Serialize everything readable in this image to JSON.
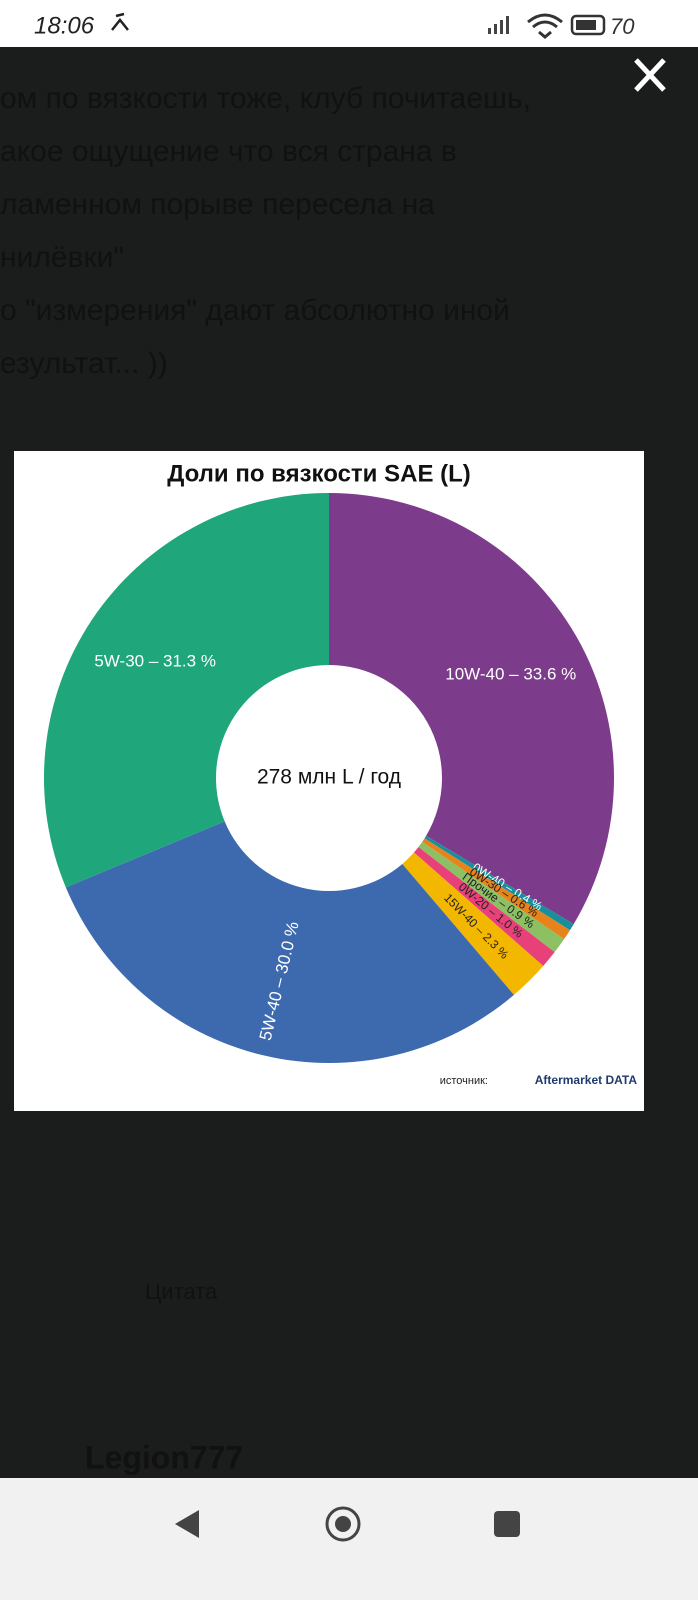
{
  "status_bar": {
    "time": "18:06",
    "battery": "70"
  },
  "background_text": {
    "lines": [
      "ом по вязкости тоже, клуб почитаешь,",
      "акое ощущение что вся страна в",
      "ламенном порыве пересела на",
      "нилёвки\"",
      "о \"измерения\" дают абсолютно иной",
      "езультат... ))"
    ],
    "quote": "Цитата",
    "user": "Legion777"
  },
  "chart_data": {
    "type": "pie",
    "title": "Доли по вязкости SAE (L)",
    "center_label": "278 млн L / год",
    "values": [
      33.6,
      0.4,
      0.6,
      0.9,
      1.0,
      2.3,
      30.0,
      31.3
    ],
    "value_labels": [
      "10W-40 – 33.6 %",
      "0W-40 – 0.4 %",
      "0W-30 – 0.6 %",
      "Прочие – 0.9 %",
      "0W-20 – 1.0 %",
      "15W-40 – 2.3 %",
      "5W-40 – 30.0 %",
      "5W-30 – 31.3 %"
    ],
    "colors": [
      "#7d3c8b",
      "#18909c",
      "#e8831b",
      "#8cc063",
      "#e8417a",
      "#f4b700",
      "#3d6aae",
      "#1fa67a"
    ],
    "source_label": "источник:",
    "source": "Aftermarket DATA"
  }
}
